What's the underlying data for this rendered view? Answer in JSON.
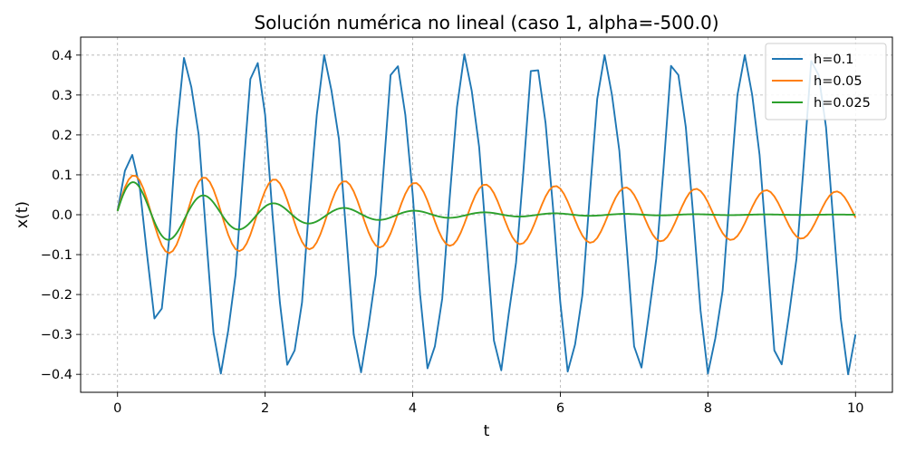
{
  "chart_data": {
    "type": "line",
    "title": "Solución numérica no lineal (caso 1, alpha=-500.0)",
    "xlabel": "t",
    "ylabel": "x(t)",
    "xlim": [
      -0.5,
      10.5
    ],
    "ylim": [
      -0.445,
      0.445
    ],
    "x_ticks": [
      0,
      2,
      4,
      6,
      8,
      10
    ],
    "x_tick_labels": [
      "0",
      "2",
      "4",
      "6",
      "8",
      "10"
    ],
    "y_ticks": [
      0.4,
      0.3,
      0.2,
      0.1,
      0.0,
      -0.1,
      -0.2,
      -0.3,
      -0.4
    ],
    "y_tick_labels": [
      "0.4",
      "0.3",
      "0.2",
      "0.1",
      "0.0",
      "−0.1",
      "−0.2",
      "−0.3",
      "−0.4"
    ],
    "grid": true,
    "legend_position": "upper right",
    "series": [
      {
        "name": "h=0.1",
        "color": "#1f77b4",
        "x": [
          0.0,
          0.1,
          0.2,
          0.3,
          0.4,
          0.5,
          0.6,
          0.7,
          0.8,
          0.9,
          1.0,
          1.1,
          1.2,
          1.3,
          1.4,
          1.5,
          1.6,
          1.7,
          1.8,
          1.9,
          2.0,
          2.1,
          2.2,
          2.3,
          2.4,
          2.5,
          2.6,
          2.7,
          2.8,
          2.9,
          3.0,
          3.1,
          3.2,
          3.3,
          3.4,
          3.5,
          3.6,
          3.7,
          3.8,
          3.9,
          4.0,
          4.1,
          4.2,
          4.3,
          4.4,
          4.5,
          4.6,
          4.7,
          4.8,
          4.9,
          5.0,
          5.1,
          5.2,
          5.3,
          5.4,
          5.5,
          5.6,
          5.7,
          5.8,
          5.9,
          6.0,
          6.1,
          6.2,
          6.3,
          6.4,
          6.5,
          6.6,
          6.7,
          6.8,
          6.9,
          7.0,
          7.1,
          7.2,
          7.3,
          7.4,
          7.5,
          7.6,
          7.7,
          7.8,
          7.9,
          8.0,
          8.1,
          8.2,
          8.3,
          8.4,
          8.5,
          8.6,
          8.7,
          8.8,
          8.9,
          9.0,
          9.1,
          9.2,
          9.3,
          9.4,
          9.5,
          9.6,
          9.7,
          9.8,
          9.9,
          10.0
        ],
        "values": [
          0.01,
          0.11,
          0.15,
          0.07,
          -0.1,
          -0.26,
          -0.235,
          -0.06,
          0.21,
          0.393,
          0.32,
          0.2,
          -0.05,
          -0.295,
          -0.398,
          -0.29,
          -0.15,
          0.1,
          0.34,
          0.38,
          0.25,
          0.0,
          -0.22,
          -0.376,
          -0.34,
          -0.22,
          0.03,
          0.25,
          0.4,
          0.31,
          0.19,
          -0.05,
          -0.3,
          -0.395,
          -0.28,
          -0.15,
          0.1,
          0.35,
          0.372,
          0.25,
          0.05,
          -0.2,
          -0.385,
          -0.33,
          -0.21,
          0.04,
          0.27,
          0.402,
          0.31,
          0.17,
          -0.07,
          -0.315,
          -0.39,
          -0.25,
          -0.12,
          0.11,
          0.36,
          0.362,
          0.23,
          0.02,
          -0.22,
          -0.393,
          -0.325,
          -0.2,
          0.05,
          0.29,
          0.4,
          0.3,
          0.16,
          -0.08,
          -0.33,
          -0.383,
          -0.25,
          -0.11,
          0.12,
          0.373,
          0.35,
          0.22,
          0.0,
          -0.24,
          -0.398,
          -0.31,
          -0.19,
          0.06,
          0.3,
          0.4,
          0.3,
          0.15,
          -0.09,
          -0.34,
          -0.375,
          -0.25,
          -0.11,
          0.13,
          0.385,
          0.35,
          0.22,
          -0.02,
          -0.26,
          -0.4,
          -0.3
        ]
      },
      {
        "name": "h=0.05",
        "color": "#ff7f0e",
        "formula": "0.1*exp(-0.055*t)*sin(6.6*t + 0.1)",
        "x_range": [
          0,
          10
        ],
        "step": 0.05
      },
      {
        "name": "h=0.025",
        "color": "#2ca02c",
        "formula": "0.092*exp(-0.55*t)*sin(6.6*t + 0.1)",
        "x_range": [
          0,
          10
        ],
        "step": 0.025
      }
    ]
  }
}
